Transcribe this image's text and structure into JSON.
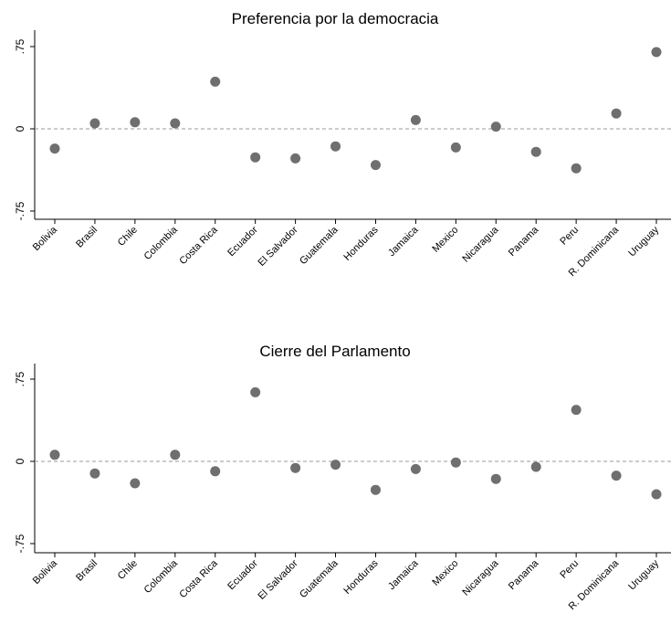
{
  "chart_data": [
    {
      "type": "scatter",
      "title": "Preferencia por la democracia",
      "categories": [
        "Bolivia",
        "Brasil",
        "Chile",
        "Colombia",
        "Costa Rica",
        "Ecuador",
        "El Salvador",
        "Guatemala",
        "Honduras",
        "Jamaica",
        "Mexico",
        "Nicaragua",
        "Panama",
        "Peru",
        "R. Dominicana",
        "Uruguay"
      ],
      "values": [
        -0.18,
        0.05,
        0.06,
        0.05,
        0.43,
        -0.26,
        -0.27,
        -0.16,
        -0.33,
        0.08,
        -0.17,
        0.02,
        -0.21,
        -0.36,
        0.14,
        0.7
      ],
      "yticks": [
        ".75",
        "0",
        "-.75"
      ],
      "ytick_values": [
        0.75,
        0,
        -0.75
      ],
      "ylim": [
        -0.82,
        0.85
      ],
      "reference_line": 0,
      "grid": false
    },
    {
      "type": "scatter",
      "title": "Cierre del Parlamento",
      "categories": [
        "Bolivia",
        "Brasil",
        "Chile",
        "Colombia",
        "Costa Rica",
        "Ecuador",
        "El Salvador",
        "Guatemala",
        "Honduras",
        "Jamaica",
        "Mexico",
        "Nicaragua",
        "Panama",
        "Peru",
        "R. Dominicana",
        "Uruguay"
      ],
      "values": [
        0.06,
        -0.11,
        -0.2,
        0.06,
        -0.09,
        0.63,
        -0.06,
        -0.03,
        -0.26,
        -0.07,
        -0.01,
        -0.16,
        -0.05,
        0.47,
        -0.13,
        -0.3
      ],
      "yticks": [
        ".75",
        "0",
        "-.75"
      ],
      "ytick_values": [
        0.75,
        0,
        -0.75
      ],
      "ylim": [
        -0.82,
        0.85
      ],
      "reference_line": 0,
      "grid": false
    }
  ],
  "colors": {
    "marker": "#6f6f6f",
    "axis": "#000000",
    "refline": "#9a9a9a"
  }
}
